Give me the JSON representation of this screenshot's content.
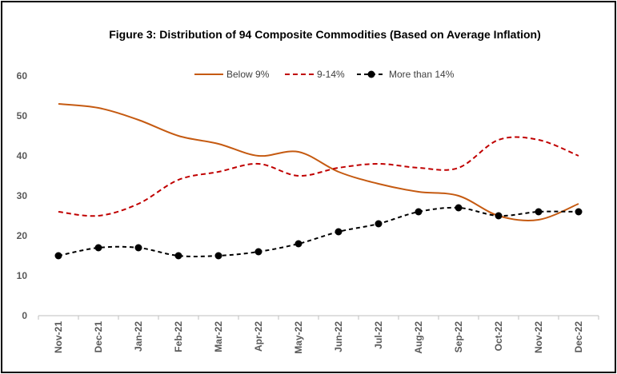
{
  "chart_data": {
    "type": "line",
    "title": "Figure 3: Distribution of 94 Composite Commodities (Based on Average Inflation)",
    "xlabel": "",
    "ylabel": "",
    "ylim": [
      0,
      60
    ],
    "yticks": [
      "0",
      "10",
      "20",
      "30",
      "40",
      "50",
      "60"
    ],
    "grid": false,
    "legend_position": "top",
    "categories": [
      "Nov-21",
      "Dec-21",
      "Jan-22",
      "Feb-22",
      "Mar-22",
      "Apr-22",
      "May-22",
      "Jun-22",
      "Jul-22",
      "Aug-22",
      "Sep-22",
      "Oct-22",
      "Nov-22",
      "Dec-22"
    ],
    "series": [
      {
        "name": "Below 9%",
        "color": "#C55A11",
        "style": "solid",
        "values": [
          53,
          52,
          49,
          45,
          43,
          40,
          41,
          36,
          33,
          31,
          30,
          25,
          24,
          28
        ]
      },
      {
        "name": "9-14%",
        "color": "#C00000",
        "style": "dashed",
        "values": [
          26,
          25,
          28,
          34,
          36,
          38,
          35,
          37,
          38,
          37,
          37,
          44,
          44,
          40
        ]
      },
      {
        "name": "More than 14%",
        "color": "#000000",
        "style": "dashed-markers",
        "values": [
          15,
          17,
          17,
          15,
          15,
          16,
          18,
          21,
          23,
          26,
          27,
          25,
          26,
          26
        ]
      }
    ]
  }
}
